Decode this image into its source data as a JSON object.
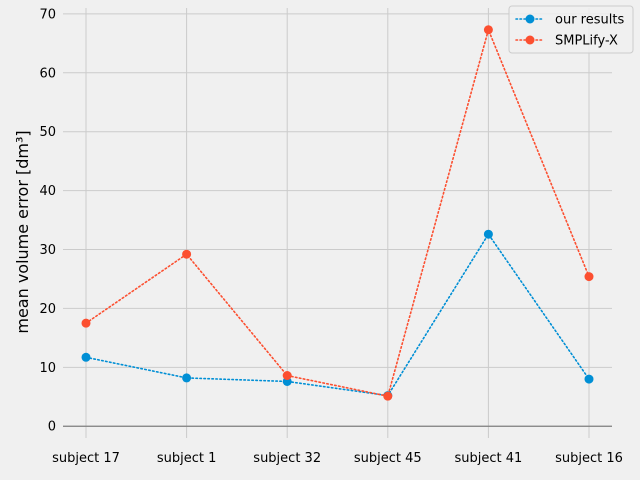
{
  "chart_data": {
    "type": "line",
    "categories": [
      "subject 17",
      "subject 1",
      "subject 32",
      "subject 45",
      "subject 41",
      "subject 16"
    ],
    "ylabel": "mean volume error [dm³]",
    "xlabel": "",
    "title": "",
    "ylim": [
      -2,
      71
    ],
    "yticks": [
      0,
      10,
      20,
      30,
      40,
      50,
      60,
      70
    ],
    "grid": true,
    "legend_position": "top-right",
    "series": [
      {
        "name": "our results",
        "color": "#008fd5",
        "values": [
          11.7,
          8.2,
          7.6,
          5.2,
          32.6,
          8.0
        ]
      },
      {
        "name": "SMPLify-X",
        "color": "#fc4f30",
        "values": [
          17.5,
          29.2,
          8.6,
          5.1,
          67.3,
          25.4
        ]
      }
    ]
  }
}
